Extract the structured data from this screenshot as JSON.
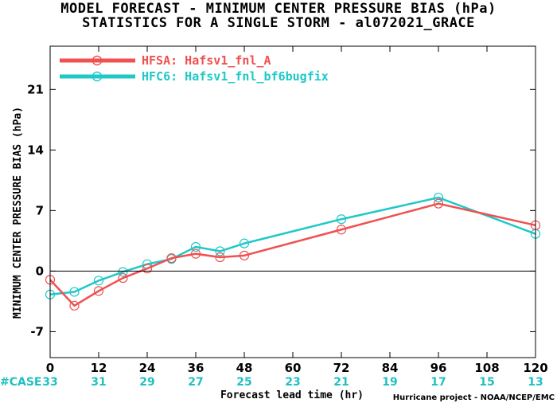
{
  "header": {
    "title_line1": "MODEL FORECAST - MINIMUM CENTER PRESSURE BIAS (hPa)",
    "title_line2": "STATISTICS FOR A SINGLE STORM - al072021_GRACE"
  },
  "case_row": {
    "label": "#CASE",
    "counts": [
      "33",
      "31",
      "29",
      "27",
      "25",
      "23",
      "21",
      "19",
      "17",
      "15",
      "13"
    ],
    "color": "#20c0c0"
  },
  "footer": {
    "credit": "Hurricane project - NOAA/NCEP/EMC"
  },
  "chart_data": {
    "type": "line",
    "title": "MODEL FORECAST - MINIMUM CENTER PRESSURE BIAS (hPa)",
    "subtitle": "STATISTICS FOR A SINGLE STORM - al072021_GRACE",
    "xlabel": "Forecast lead time (hr)",
    "ylabel": "MINIMUM CENTER PRESSURE BIAS (hPa)",
    "xlim": [
      0,
      120
    ],
    "ylim": [
      -10,
      26
    ],
    "xticks": [
      0,
      12,
      24,
      36,
      48,
      60,
      72,
      84,
      96,
      108,
      120
    ],
    "yticks": [
      -7,
      0,
      7,
      14,
      21
    ],
    "zero_line": true,
    "grid": false,
    "legend_position": "top-left",
    "series": [
      {
        "name": "HFSA: Hafsv1_fnl_A",
        "color": "#f05050",
        "x": [
          0,
          6,
          12,
          18,
          24,
          30,
          36,
          42,
          48,
          72,
          96,
          120
        ],
        "y": [
          -1.0,
          -4.0,
          -2.3,
          -0.8,
          0.3,
          1.5,
          2.0,
          1.6,
          1.8,
          4.8,
          7.8,
          5.3
        ]
      },
      {
        "name": "HFC6: Hafsv1_fnl_bf6bugfix",
        "color": "#20c8c8",
        "x": [
          0,
          6,
          12,
          18,
          24,
          30,
          36,
          42,
          48,
          72,
          96,
          120
        ],
        "y": [
          -2.7,
          -2.4,
          -1.1,
          -0.1,
          0.8,
          1.4,
          2.8,
          2.3,
          3.2,
          6.0,
          8.5,
          4.3
        ]
      }
    ]
  }
}
